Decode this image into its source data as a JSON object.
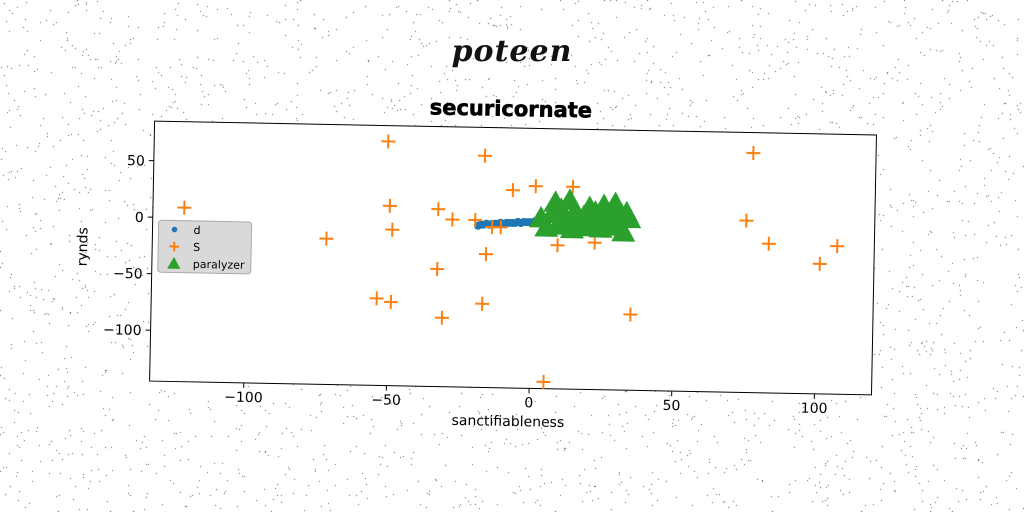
{
  "header": {
    "supertitle": "poteen"
  },
  "chart_data": {
    "type": "scatter",
    "title": "securicornate",
    "xlabel": "sanctifiableness",
    "ylabel": "rynds",
    "xlim": [
      -133,
      120
    ],
    "ylim": [
      -145,
      85
    ],
    "xticks": [
      -100,
      -50,
      0,
      50,
      100
    ],
    "yticks": [
      50,
      0,
      -50,
      -100
    ],
    "xtick_labels": [
      "−100",
      "−50",
      "0",
      "50",
      "100"
    ],
    "ytick_labels": [
      "50",
      "0",
      "−50",
      "−100"
    ],
    "grid": false,
    "legend_position": "center-left",
    "series": [
      {
        "name": "d",
        "marker": "circle",
        "color": "#1f77b4",
        "points": [
          [
            -19,
            -2
          ],
          [
            -18,
            -1
          ],
          [
            -17,
            -1
          ],
          [
            -16,
            0
          ],
          [
            -15,
            -1
          ],
          [
            -14,
            0
          ],
          [
            -13,
            0
          ],
          [
            -12,
            0
          ],
          [
            -11,
            1
          ],
          [
            -10,
            0
          ],
          [
            -9,
            1
          ],
          [
            -8,
            1
          ],
          [
            -7,
            1
          ],
          [
            -6,
            1
          ],
          [
            -5,
            2
          ],
          [
            -4,
            1
          ],
          [
            -3,
            2
          ],
          [
            -2,
            2
          ],
          [
            -1,
            2
          ],
          [
            0,
            2
          ],
          [
            1,
            3
          ]
        ]
      },
      {
        "name": "S",
        "marker": "plus",
        "color": "#ff7f0e",
        "points": [
          [
            -51,
            71
          ],
          [
            -17,
            60
          ],
          [
            -7,
            30
          ],
          [
            1,
            34
          ],
          [
            14,
            34
          ],
          [
            -122,
            9
          ],
          [
            -50,
            14
          ],
          [
            -33,
            12
          ],
          [
            -28,
            3
          ],
          [
            -20,
            3
          ],
          [
            -14,
            -3
          ],
          [
            -11,
            -3
          ],
          [
            -49,
            -7
          ],
          [
            -72,
            -16
          ],
          [
            -16,
            -27
          ],
          [
            -33,
            -41
          ],
          [
            -54,
            -68
          ],
          [
            -49,
            -71
          ],
          [
            -17,
            -71
          ],
          [
            -31,
            -84
          ],
          [
            5,
            -139
          ],
          [
            9,
            -18
          ],
          [
            22,
            -15
          ],
          [
            35,
            -78
          ],
          [
            77,
            67
          ],
          [
            75,
            7
          ],
          [
            83,
            -13
          ],
          [
            107,
            -14
          ],
          [
            101,
            -30
          ]
        ]
      },
      {
        "name": "paralyzer",
        "marker": "triangle",
        "color": "#2ca02c",
        "points": [
          [
            3,
            6
          ],
          [
            5,
            -2
          ],
          [
            7,
            10
          ],
          [
            8,
            20
          ],
          [
            9,
            0
          ],
          [
            10,
            14
          ],
          [
            12,
            5
          ],
          [
            13,
            22
          ],
          [
            14,
            -3
          ],
          [
            15,
            12
          ],
          [
            16,
            2
          ],
          [
            18,
            8
          ],
          [
            19,
            -1
          ],
          [
            20,
            16
          ],
          [
            21,
            5
          ],
          [
            22,
            12
          ],
          [
            24,
            -2
          ],
          [
            25,
            18
          ],
          [
            26,
            8
          ],
          [
            27,
            0
          ],
          [
            28,
            14
          ],
          [
            29,
            20
          ],
          [
            30,
            3
          ],
          [
            31,
            10
          ],
          [
            32,
            -5
          ],
          [
            33,
            12
          ],
          [
            34,
            7
          ]
        ]
      }
    ]
  }
}
